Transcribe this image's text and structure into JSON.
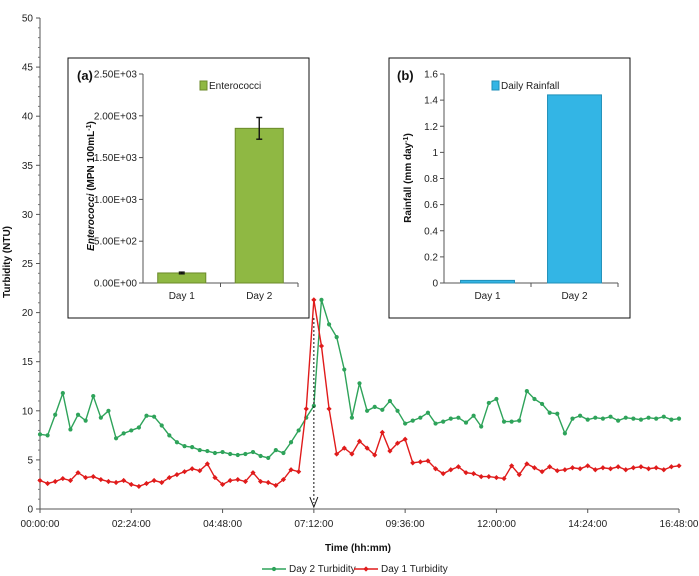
{
  "chart_data": {
    "main": {
      "type": "line",
      "xlabel": "Time (hh:mm)",
      "ylabel": "Turbidity (NTU)",
      "ylim": [
        0,
        50
      ],
      "yticks": [
        "0",
        "5",
        "10",
        "15",
        "20",
        "25",
        "30",
        "35",
        "40",
        "45",
        "50"
      ],
      "xticks": [
        "00:00:00",
        "02:24:00",
        "04:48:00",
        "07:12:00",
        "09:36:00",
        "12:00:00",
        "14:24:00",
        "16:48:00"
      ],
      "xlim_hours": [
        0,
        16.8
      ],
      "annotation_arrow_time": "07:12:00",
      "series": [
        {
          "name": "Day 2 Turbidity",
          "color": "#2ea35a",
          "marker": "circle",
          "time_hours": [
            0,
            0.2,
            0.4,
            0.6,
            0.8,
            1.0,
            1.2,
            1.4,
            1.6,
            1.8,
            2.0,
            2.2,
            2.4,
            2.6,
            2.8,
            3.0,
            3.2,
            3.4,
            3.6,
            3.8,
            4.0,
            4.2,
            4.4,
            4.6,
            4.8,
            5.0,
            5.2,
            5.4,
            5.6,
            5.8,
            6.0,
            6.2,
            6.4,
            6.6,
            6.8,
            7.0,
            7.2,
            7.4,
            7.6,
            7.8,
            8.0,
            8.2,
            8.4,
            8.6,
            8.8,
            9.0,
            9.2,
            9.4,
            9.6,
            9.8,
            10.0,
            10.2,
            10.4,
            10.6,
            10.8,
            11.0,
            11.2,
            11.4,
            11.6,
            11.8,
            12.0,
            12.2,
            12.4,
            12.6,
            12.8,
            13.0,
            13.2,
            13.4,
            13.6,
            13.8,
            14.0,
            14.2,
            14.4,
            14.6,
            14.8,
            15.0,
            15.2,
            15.4,
            15.6,
            15.8,
            16.0,
            16.2,
            16.4,
            16.6,
            16.8
          ],
          "values": [
            7.6,
            7.5,
            9.6,
            11.8,
            8.1,
            9.6,
            9.0,
            11.5,
            9.3,
            10.0,
            7.2,
            7.7,
            8.0,
            8.3,
            9.5,
            9.4,
            8.5,
            7.5,
            6.8,
            6.4,
            6.3,
            6.0,
            5.9,
            5.7,
            5.8,
            5.6,
            5.5,
            5.6,
            5.8,
            5.4,
            5.2,
            6.0,
            5.7,
            6.8,
            8.0,
            9.3,
            10.5,
            21.3,
            18.8,
            17.5,
            14.2,
            9.3,
            12.8,
            10.0,
            10.4,
            10.1,
            11.0,
            10.0,
            8.7,
            9.0,
            9.3,
            9.8,
            8.7,
            8.9,
            9.2,
            9.3,
            8.8,
            9.5,
            8.4,
            10.8,
            11.2,
            8.9,
            8.9,
            9.0,
            12.0,
            11.2,
            10.7,
            9.8,
            9.7,
            7.7,
            9.2,
            9.5,
            9.1,
            9.3,
            9.2,
            9.4,
            9.0,
            9.3,
            9.2,
            9.1,
            9.3,
            9.2,
            9.4,
            9.1,
            9.2
          ]
        },
        {
          "name": "Day 1 Turbidity",
          "color": "#e01b1b",
          "marker": "diamond",
          "time_hours": [
            0,
            0.2,
            0.4,
            0.6,
            0.8,
            1.0,
            1.2,
            1.4,
            1.6,
            1.8,
            2.0,
            2.2,
            2.4,
            2.6,
            2.8,
            3.0,
            3.2,
            3.4,
            3.6,
            3.8,
            4.0,
            4.2,
            4.4,
            4.6,
            4.8,
            5.0,
            5.2,
            5.4,
            5.6,
            5.8,
            6.0,
            6.2,
            6.4,
            6.6,
            6.8,
            7.0,
            7.2,
            7.4,
            7.6,
            7.8,
            8.0,
            8.2,
            8.4,
            8.6,
            8.8,
            9.0,
            9.2,
            9.4,
            9.6,
            9.8,
            10.0,
            10.2,
            10.4,
            10.6,
            10.8,
            11.0,
            11.2,
            11.4,
            11.6,
            11.8,
            12.0,
            12.2,
            12.4,
            12.6,
            12.8,
            13.0,
            13.2,
            13.4,
            13.6,
            13.8,
            14.0,
            14.2,
            14.4,
            14.6,
            14.8,
            15.0,
            15.2,
            15.4,
            15.6,
            15.8,
            16.0,
            16.2,
            16.4,
            16.6,
            16.8
          ],
          "values": [
            2.9,
            2.6,
            2.8,
            3.1,
            2.9,
            3.7,
            3.2,
            3.3,
            3.0,
            2.8,
            2.7,
            2.9,
            2.5,
            2.3,
            2.6,
            2.9,
            2.7,
            3.2,
            3.5,
            3.8,
            4.1,
            3.9,
            4.6,
            3.2,
            2.5,
            2.9,
            3.0,
            2.8,
            3.7,
            2.8,
            2.7,
            2.4,
            3.0,
            4.0,
            3.8,
            10.2,
            21.3,
            16.6,
            10.2,
            5.6,
            6.2,
            5.6,
            6.9,
            6.2,
            5.5,
            7.8,
            5.9,
            6.7,
            7.1,
            4.7,
            4.8,
            4.9,
            4.1,
            3.6,
            4.0,
            4.3,
            3.7,
            3.6,
            3.3,
            3.3,
            3.2,
            3.1,
            4.4,
            3.5,
            4.6,
            4.2,
            3.8,
            4.3,
            3.9,
            4.0,
            4.2,
            4.1,
            4.4,
            4.0,
            4.2,
            4.1,
            4.3,
            4.0,
            4.2,
            4.3,
            4.1,
            4.2,
            4.0,
            4.3,
            4.4
          ]
        }
      ],
      "legend": {
        "placement": "bottom",
        "entries": [
          "Day 2 Turbidity",
          "Day 1 Turbidity"
        ]
      }
    },
    "inset_a": {
      "type": "bar",
      "panel_label": "(a)",
      "categories": [
        "Day 1",
        "Day 2"
      ],
      "values": [
        120,
        1850
      ],
      "error": [
        10,
        130
      ],
      "ylabel": "Enterococci (MPN 100mL-1)",
      "ylim": [
        0,
        2500
      ],
      "yticks": [
        "0.00E+00",
        "5.00E+02",
        "1.00E+03",
        "1.50E+03",
        "2.00E+03",
        "2.50E+03"
      ],
      "legend": "Enterococci",
      "color": "#8fb843"
    },
    "inset_b": {
      "type": "bar",
      "panel_label": "(b)",
      "categories": [
        "Day 1",
        "Day 2"
      ],
      "values": [
        0.02,
        1.44
      ],
      "ylabel": "Rainfall (mm day-1)",
      "ylim": [
        0,
        1.6
      ],
      "yticks": [
        "0",
        "0.2",
        "0.4",
        "0.6",
        "0.8",
        "1",
        "1.2",
        "1.4",
        "1.6"
      ],
      "legend": "Daily Rainfall",
      "color": "#33b5e5"
    }
  }
}
